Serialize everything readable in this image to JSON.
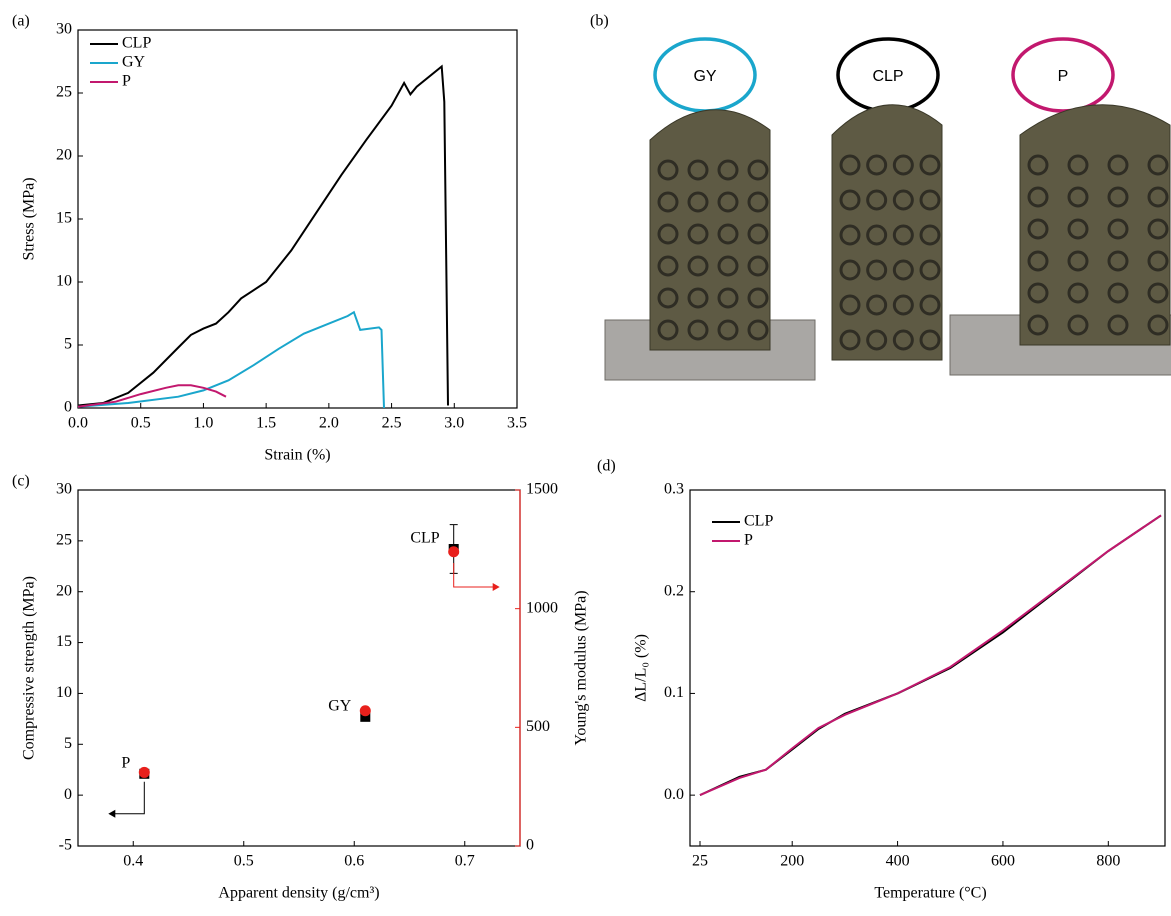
{
  "chart_data": [
    {
      "type": "line",
      "panel_label": "(a)",
      "x_label": "Strain (%)",
      "y_label": "Stress (MPa)",
      "xlim": [
        0,
        3.5
      ],
      "xticks": [
        {
          "value": 0,
          "label": "0.0"
        },
        0.5,
        {
          "value": 1,
          "label": "1.0"
        },
        1.5,
        {
          "value": 2,
          "label": "2.0"
        },
        2.5,
        {
          "value": 3,
          "label": "3.0"
        },
        3.5
      ],
      "ylim": [
        0,
        30
      ],
      "yticks": [
        0,
        5,
        10,
        15,
        20,
        25,
        30
      ],
      "legend": "upper-left",
      "series": [
        {
          "name": "CLP",
          "color": "#000000",
          "x": [
            0,
            0.2,
            0.4,
            0.6,
            0.8,
            0.9,
            1.0,
            1.1,
            1.2,
            1.3,
            1.5,
            1.7,
            1.9,
            2.1,
            2.3,
            2.5,
            2.6,
            2.65,
            2.7,
            2.9,
            2.92,
            2.95
          ],
          "values": [
            0.2,
            0.4,
            1.2,
            2.8,
            4.8,
            5.8,
            6.3,
            6.7,
            7.6,
            8.7,
            10,
            12.5,
            15.5,
            18.5,
            21.3,
            24,
            25.8,
            24.9,
            25.5,
            27.1,
            24.3,
            0.2
          ]
        },
        {
          "name": "GY",
          "color": "#1aa6cc",
          "x": [
            0,
            0.4,
            0.8,
            1.0,
            1.2,
            1.4,
            1.6,
            1.8,
            2.0,
            2.15,
            2.2,
            2.25,
            2.4,
            2.42,
            2.44
          ],
          "values": [
            0.1,
            0.4,
            0.9,
            1.4,
            2.2,
            3.4,
            4.7,
            5.9,
            6.7,
            7.3,
            7.6,
            6.2,
            6.4,
            6.2,
            0
          ]
        },
        {
          "name": "P",
          "color": "#c2186e",
          "x": [
            0,
            0.3,
            0.5,
            0.7,
            0.8,
            0.9,
            1.0,
            1.1,
            1.18
          ],
          "values": [
            0.1,
            0.5,
            1.1,
            1.6,
            1.8,
            1.8,
            1.6,
            1.3,
            0.9
          ]
        }
      ]
    },
    {
      "type": "image",
      "panel_label": "(b)",
      "labels": [
        {
          "text": "GY",
          "color": "#1aa6cc"
        },
        {
          "text": "CLP",
          "color": "#000000"
        },
        {
          "text": "P",
          "color": "#c2186e"
        }
      ]
    },
    {
      "type": "scatter",
      "panel_label": "(c)",
      "x_label": "Apparent density (g/cm³)",
      "y_label": "Compressive strength (MPa)",
      "y2_label": "Young's modulus (MPa)",
      "y2_color": "#e8201c",
      "xlim": [
        0.35,
        0.75
      ],
      "xticks": [
        0.4,
        0.5,
        0.6,
        0.7
      ],
      "ylim": [
        -5,
        30
      ],
      "yticks": [
        -5,
        0,
        5,
        10,
        15,
        20,
        25,
        30
      ],
      "y2lim": [
        0,
        1500
      ],
      "y2ticks": [
        0,
        500,
        1000,
        1500
      ],
      "x": [
        0.41,
        0.61,
        0.69
      ],
      "point_labels": [
        {
          "text": "P",
          "color": "#c2186e"
        },
        {
          "text": "GY",
          "color": "#1aa6cc"
        },
        {
          "text": "CLP",
          "color": "#000000"
        }
      ],
      "series": [
        {
          "color": "#000000",
          "marker": "square",
          "values": [
            2.1,
            7.7,
            24.2
          ],
          "errors": [
            null,
            null,
            2.4
          ]
        },
        {
          "color": "#e8201c",
          "marker": "circle",
          "axis": "y2",
          "values": [
            310,
            570,
            1240
          ]
        }
      ]
    },
    {
      "type": "line",
      "panel_label": "(d)",
      "x_label": "Temperature (°C)",
      "y_label": "ΔL/L₀ (%)",
      "xlim": [
        25,
        900
      ],
      "xticks": [
        25,
        200,
        400,
        600,
        800
      ],
      "ylim": [
        -0.05,
        0.3
      ],
      "yticks": [
        {
          "value": 0,
          "label": "0.0"
        },
        0.1,
        0.2,
        0.3
      ],
      "legend": "upper-left",
      "series": [
        {
          "name": "CLP",
          "color": "#000000",
          "x": [
            25,
            100,
            150,
            200,
            250,
            300,
            400,
            500,
            600,
            700,
            800,
            900
          ],
          "values": [
            0,
            0.018,
            0.025,
            0.045,
            0.065,
            0.08,
            0.1,
            0.125,
            0.16,
            0.2,
            0.24,
            0.275
          ]
        },
        {
          "name": "P",
          "color": "#c2186e",
          "x": [
            25,
            100,
            150,
            200,
            250,
            300,
            400,
            500,
            600,
            700,
            800,
            900
          ],
          "values": [
            0,
            0.017,
            0.025,
            0.046,
            0.066,
            0.079,
            0.1,
            0.126,
            0.162,
            0.201,
            0.24,
            0.275
          ]
        }
      ]
    }
  ]
}
